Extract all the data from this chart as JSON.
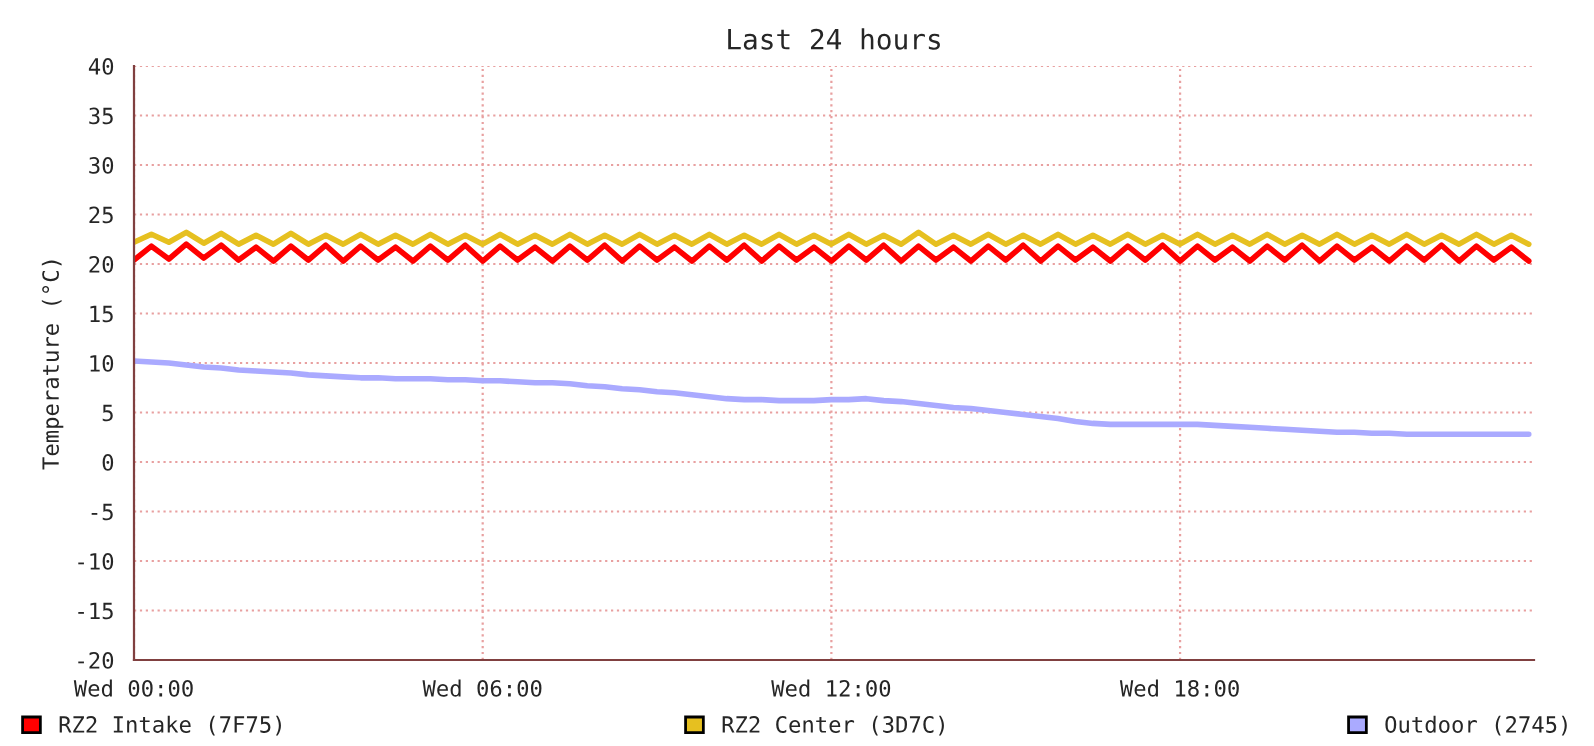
{
  "chart_data": {
    "type": "line",
    "title": "Last 24 hours",
    "ylabel": "Temperature (°C)",
    "categories": [
      "Wed 00:00",
      null,
      null,
      null,
      null,
      null,
      null,
      null,
      null,
      null,
      null,
      null,
      null,
      null,
      null,
      null,
      null,
      null,
      null,
      null,
      "Wed 06:00",
      null,
      null,
      null,
      null,
      null,
      null,
      null,
      null,
      null,
      null,
      null,
      null,
      null,
      null,
      null,
      null,
      null,
      null,
      null,
      "Wed 12:00",
      null,
      null,
      null,
      null,
      null,
      null,
      null,
      null,
      null,
      null,
      null,
      null,
      null,
      null,
      null,
      null,
      null,
      null,
      null,
      "Wed 18:00",
      null,
      null,
      null,
      null,
      null,
      null,
      null,
      null,
      null,
      null,
      null,
      null,
      null,
      null,
      null,
      null,
      null,
      null,
      null,
      null
    ],
    "series": [
      {
        "name": "RZ2 Intake (7F75)",
        "color": "#ff0000",
        "values": [
          20.4,
          21.8,
          20.5,
          22.0,
          20.6,
          21.9,
          20.4,
          21.7,
          20.3,
          21.8,
          20.4,
          21.9,
          20.3,
          21.8,
          20.4,
          21.7,
          20.3,
          21.8,
          20.4,
          21.9,
          20.3,
          21.8,
          20.4,
          21.7,
          20.3,
          21.8,
          20.4,
          21.9,
          20.3,
          21.8,
          20.4,
          21.7,
          20.3,
          21.8,
          20.4,
          21.9,
          20.3,
          21.8,
          20.4,
          21.7,
          20.3,
          21.8,
          20.4,
          21.9,
          20.3,
          21.8,
          20.4,
          21.7,
          20.3,
          21.8,
          20.4,
          21.9,
          20.3,
          21.8,
          20.4,
          21.7,
          20.3,
          21.8,
          20.4,
          21.9,
          20.3,
          21.8,
          20.4,
          21.7,
          20.3,
          21.8,
          20.4,
          21.9,
          20.3,
          21.8,
          20.4,
          21.7,
          20.3,
          21.8,
          20.4,
          21.9,
          20.3,
          21.8,
          20.4,
          21.7,
          20.3
        ]
      },
      {
        "name": "RZ2 Center (3D7C)",
        "color": "#e6c020",
        "values": [
          22.2,
          23.0,
          22.2,
          23.2,
          22.1,
          23.1,
          22.0,
          22.9,
          22.0,
          23.1,
          22.0,
          22.9,
          22.0,
          23.0,
          22.0,
          22.9,
          22.0,
          23.0,
          22.0,
          22.9,
          22.0,
          23.0,
          22.0,
          22.9,
          22.0,
          23.0,
          22.0,
          22.9,
          22.0,
          23.0,
          22.0,
          22.9,
          22.0,
          23.0,
          22.0,
          22.9,
          22.0,
          23.0,
          22.0,
          22.9,
          22.0,
          23.0,
          22.0,
          22.9,
          22.0,
          23.2,
          22.0,
          22.9,
          22.0,
          23.0,
          22.0,
          22.9,
          22.0,
          23.0,
          22.0,
          22.9,
          22.0,
          23.0,
          22.0,
          22.9,
          22.0,
          23.0,
          22.0,
          22.9,
          22.0,
          23.0,
          22.0,
          22.9,
          22.0,
          23.0,
          22.0,
          22.9,
          22.0,
          23.0,
          22.0,
          22.9,
          22.0,
          23.0,
          22.0,
          22.9,
          22.0
        ]
      },
      {
        "name": "Outdoor (2745)",
        "color": "#aaaaff",
        "values": [
          10.2,
          10.1,
          10.0,
          9.8,
          9.6,
          9.5,
          9.3,
          9.2,
          9.1,
          9.0,
          8.8,
          8.7,
          8.6,
          8.5,
          8.5,
          8.4,
          8.4,
          8.4,
          8.3,
          8.3,
          8.2,
          8.2,
          8.1,
          8.0,
          8.0,
          7.9,
          7.7,
          7.6,
          7.4,
          7.3,
          7.1,
          7.0,
          6.8,
          6.6,
          6.4,
          6.3,
          6.3,
          6.2,
          6.2,
          6.2,
          6.3,
          6.3,
          6.4,
          6.2,
          6.1,
          5.9,
          5.7,
          5.5,
          5.4,
          5.2,
          5.0,
          4.8,
          4.6,
          4.4,
          4.1,
          3.9,
          3.8,
          3.8,
          3.8,
          3.8,
          3.8,
          3.8,
          3.7,
          3.6,
          3.5,
          3.4,
          3.3,
          3.2,
          3.1,
          3.0,
          3.0,
          2.9,
          2.9,
          2.8,
          2.8,
          2.8,
          2.8,
          2.8,
          2.8,
          2.8,
          2.8
        ]
      }
    ],
    "ylim": [
      -20,
      40
    ],
    "yticks": [
      -20,
      -15,
      -10,
      -5,
      0,
      5,
      10,
      15,
      20,
      25,
      30,
      35,
      40
    ],
    "grid": true,
    "legend": "bottom"
  }
}
